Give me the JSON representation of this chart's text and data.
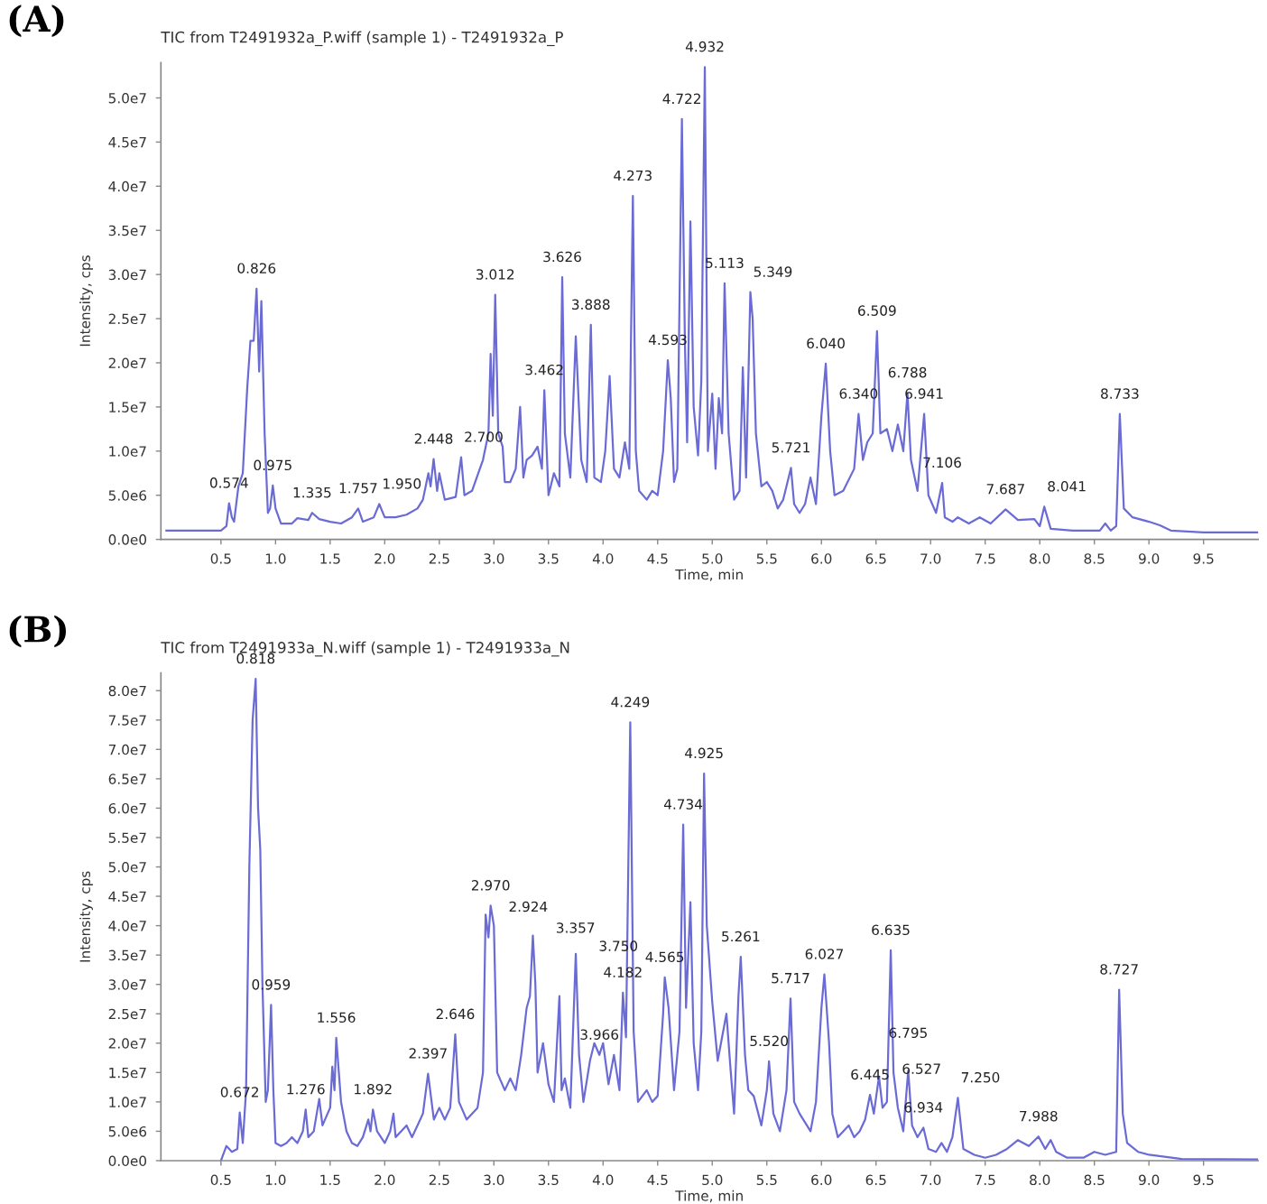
{
  "chart_data": [
    {
      "type": "line",
      "title": "TIC from T2491932a_P.wiff (sample 1) - T2491932a_P",
      "xlabel": "Time, min",
      "ylabel": "Intensity, cps",
      "xlim": [
        -0.05,
        10.0
      ],
      "xticks": [
        0.5,
        {
          "value": 1,
          "label": "1.0"
        },
        1.5,
        {
          "value": 2,
          "label": "2.0"
        },
        2.5,
        {
          "value": 3,
          "label": "3.0"
        },
        3.5,
        {
          "value": 4,
          "label": "4.0"
        },
        4.5,
        {
          "value": 5,
          "label": "5.0"
        },
        5.5,
        {
          "value": 6,
          "label": "6.0"
        },
        6.5,
        {
          "value": 7,
          "label": "7.0"
        },
        7.5,
        {
          "value": 8,
          "label": "8.0"
        },
        8.5,
        {
          "value": 9,
          "label": "9.0"
        },
        9.5
      ],
      "ylim": [
        0,
        54000000.0
      ],
      "yticks": [
        {
          "value": 0,
          "label": "0.0e0"
        },
        {
          "value": 5000000.0,
          "label": "5.0e6"
        },
        {
          "value": 10000000.0,
          "label": "1.0e7"
        },
        {
          "value": 15000000.0,
          "label": "1.5e7"
        },
        {
          "value": 20000000.0,
          "label": "2.0e7"
        },
        {
          "value": 25000000.0,
          "label": "2.5e7"
        },
        {
          "value": 30000000.0,
          "label": "3.0e7"
        },
        {
          "value": 35000000.0,
          "label": "3.5e7"
        },
        {
          "value": 40000000.0,
          "label": "4.0e7"
        },
        {
          "value": 45000000.0,
          "label": "4.5e7"
        },
        {
          "value": 50000000.0,
          "label": "5.0e7"
        }
      ],
      "grid": false,
      "marker": "none",
      "line_style": "solid",
      "series": [
        {
          "color": "#6b6bd6",
          "x": [
            0.0,
            0.5,
            0.55,
            0.574,
            0.6,
            0.62,
            0.66,
            0.7,
            0.74,
            0.77,
            0.8,
            0.826,
            0.85,
            0.87,
            0.9,
            0.93,
            0.95,
            0.975,
            1.0,
            1.05,
            1.15,
            1.2,
            1.3,
            1.335,
            1.4,
            1.5,
            1.6,
            1.7,
            1.757,
            1.8,
            1.9,
            1.95,
            2.0,
            2.1,
            2.2,
            2.3,
            2.35,
            2.4,
            2.42,
            2.448,
            2.48,
            2.5,
            2.55,
            2.65,
            2.7,
            2.73,
            2.8,
            2.9,
            2.95,
            2.97,
            2.99,
            3.012,
            3.04,
            3.08,
            3.1,
            3.15,
            3.2,
            3.24,
            3.27,
            3.3,
            3.35,
            3.4,
            3.44,
            3.462,
            3.5,
            3.55,
            3.6,
            3.626,
            3.65,
            3.7,
            3.75,
            3.8,
            3.85,
            3.888,
            3.92,
            3.98,
            4.02,
            4.06,
            4.1,
            4.15,
            4.2,
            4.24,
            4.273,
            4.3,
            4.33,
            4.4,
            4.45,
            4.5,
            4.55,
            4.593,
            4.62,
            4.65,
            4.68,
            4.722,
            4.75,
            4.77,
            4.8,
            4.83,
            4.87,
            4.9,
            4.932,
            4.96,
            5.0,
            5.03,
            5.06,
            5.09,
            5.113,
            5.15,
            5.2,
            5.25,
            5.28,
            5.31,
            5.349,
            5.37,
            5.4,
            5.45,
            5.5,
            5.55,
            5.6,
            5.65,
            5.721,
            5.75,
            5.8,
            5.85,
            5.9,
            5.95,
            6.0,
            6.04,
            6.08,
            6.12,
            6.2,
            6.3,
            6.34,
            6.38,
            6.42,
            6.47,
            6.509,
            6.54,
            6.6,
            6.65,
            6.7,
            6.75,
            6.788,
            6.82,
            6.88,
            6.941,
            6.98,
            7.05,
            7.106,
            7.13,
            7.2,
            7.25,
            7.35,
            7.45,
            7.55,
            7.687,
            7.8,
            7.95,
            8.0,
            8.041,
            8.1,
            8.3,
            8.55,
            8.6,
            8.65,
            8.7,
            8.733,
            8.77,
            8.85,
            9.0,
            9.1,
            9.2,
            9.5,
            10.0
          ],
          "values": [
            1000000.0,
            1000000.0,
            1500000.0,
            4100000.0,
            2500000.0,
            2000000.0,
            6000000.0,
            7500000.0,
            17000000.0,
            22500000.0,
            22500000.0,
            28400000.0,
            19000000.0,
            27000000.0,
            12000000.0,
            3000000.0,
            3500000.0,
            6100000.0,
            3500000.0,
            1800000.0,
            1800000.0,
            2400000.0,
            2200000.0,
            3000000.0,
            2300000.0,
            2000000.0,
            1800000.0,
            2500000.0,
            3500000.0,
            2000000.0,
            2500000.0,
            4000000.0,
            2500000.0,
            2500000.0,
            2800000.0,
            3500000.0,
            4500000.0,
            7500000.0,
            6000000.0,
            9100000.0,
            5500000.0,
            7500000.0,
            4500000.0,
            4800000.0,
            9300000.0,
            5000000.0,
            5500000.0,
            9000000.0,
            12000000.0,
            21000000.0,
            14000000.0,
            27700000.0,
            12000000.0,
            10500000.0,
            6500000.0,
            6500000.0,
            8000000.0,
            15000000.0,
            7000000.0,
            9000000.0,
            9500000.0,
            10500000.0,
            8000000.0,
            16900000.0,
            5000000.0,
            7500000.0,
            6000000.0,
            29700000.0,
            12000000.0,
            7000000.0,
            23000000.0,
            9000000.0,
            6500000.0,
            24300000.0,
            7000000.0,
            6500000.0,
            10000000.0,
            18500000.0,
            8000000.0,
            7000000.0,
            11000000.0,
            8000000.0,
            38900000.0,
            10000000.0,
            5500000.0,
            4500000.0,
            5500000.0,
            5000000.0,
            10000000.0,
            20300000.0,
            16000000.0,
            6500000.0,
            8000000.0,
            47600000.0,
            22000000.0,
            11000000.0,
            36000000.0,
            15000000.0,
            9500000.0,
            18000000.0,
            53500000.0,
            10000000.0,
            16500000.0,
            8000000.0,
            16000000.0,
            12000000.0,
            29000000.0,
            12000000.0,
            4500000.0,
            5500000.0,
            19500000.0,
            7000000.0,
            28000000.0,
            25000000.0,
            12000000.0,
            6000000.0,
            6500000.0,
            5500000.0,
            3500000.0,
            4500000.0,
            8100000.0,
            4000000.0,
            3000000.0,
            4000000.0,
            7000000.0,
            4000000.0,
            14000000.0,
            19900000.0,
            10000000.0,
            5000000.0,
            5500000.0,
            8000000.0,
            14200000.0,
            9000000.0,
            11000000.0,
            12000000.0,
            23600000.0,
            12000000.0,
            12500000.0,
            10000000.0,
            13000000.0,
            10000000.0,
            16600000.0,
            9000000.0,
            5500000.0,
            14200000.0,
            5000000.0,
            3000000.0,
            6400000.0,
            2500000.0,
            2000000.0,
            2500000.0,
            1800000.0,
            2500000.0,
            1800000.0,
            3400000.0,
            2200000.0,
            2300000.0,
            1500000.0,
            3700000.0,
            1200000.0,
            1000000.0,
            1000000.0,
            1800000.0,
            1000000.0,
            1500000.0,
            14200000.0,
            3500000.0,
            2500000.0,
            2000000.0,
            1600000.0,
            1000000.0,
            800000.0,
            800000.0
          ]
        }
      ],
      "annotations": [
        "(A)",
        {
          "text": "0.574",
          "x": 0.574,
          "y": 4100000.0
        },
        {
          "text": "0.826",
          "x": 0.826,
          "y": 28400000.0
        },
        {
          "text": "0.975",
          "x": 0.975,
          "y": 6100000.0
        },
        {
          "text": "1.335",
          "x": 1.335,
          "y": 3000000.0
        },
        {
          "text": "1.757",
          "x": 1.757,
          "y": 3500000.0
        },
        {
          "text": "1.950",
          "x": 1.95,
          "y": 4000000.0
        },
        {
          "text": "2.448",
          "x": 2.448,
          "y": 9100000.0
        },
        {
          "text": "2.700",
          "x": 2.7,
          "y": 9300000.0
        },
        {
          "text": "3.012",
          "x": 3.012,
          "y": 27700000.0
        },
        {
          "text": "3.462",
          "x": 3.462,
          "y": 16900000.0
        },
        {
          "text": "3.626",
          "x": 3.626,
          "y": 29700000.0
        },
        {
          "text": "3.888",
          "x": 3.888,
          "y": 24300000.0
        },
        {
          "text": "4.273",
          "x": 4.273,
          "y": 38900000.0
        },
        {
          "text": "4.593",
          "x": 4.593,
          "y": 20300000.0
        },
        {
          "text": "4.722",
          "x": 4.722,
          "y": 47600000.0
        },
        {
          "text": "4.932",
          "x": 4.932,
          "y": 53500000.0
        },
        {
          "text": "5.113",
          "x": 5.113,
          "y": 29000000.0
        },
        {
          "text": "5.349",
          "x": 5.349,
          "y": 28000000.0
        },
        {
          "text": "5.721",
          "x": 5.721,
          "y": 8100000.0
        },
        {
          "text": "6.040",
          "x": 6.04,
          "y": 19900000.0
        },
        {
          "text": "6.340",
          "x": 6.34,
          "y": 14200000.0
        },
        {
          "text": "6.509",
          "x": 6.509,
          "y": 23600000.0
        },
        {
          "text": "6.788",
          "x": 6.788,
          "y": 16600000.0
        },
        {
          "text": "6.941",
          "x": 6.941,
          "y": 14200000.0
        },
        {
          "text": "7.106",
          "x": 7.106,
          "y": 6400000.0
        },
        {
          "text": "7.687",
          "x": 7.687,
          "y": 3400000.0
        },
        {
          "text": "8.041",
          "x": 8.041,
          "y": 3700000.0
        },
        {
          "text": "8.733",
          "x": 8.733,
          "y": 14200000.0
        }
      ]
    },
    {
      "type": "line",
      "title": "TIC from T2491933a_N.wiff (sample 1) - T2491933a_N",
      "xlabel": "Time, min",
      "ylabel": "Intensity, cps",
      "xlim": [
        -0.05,
        10.0
      ],
      "xticks": [
        0.5,
        {
          "value": 1,
          "label": "1.0"
        },
        1.5,
        {
          "value": 2,
          "label": "2.0"
        },
        2.5,
        {
          "value": 3,
          "label": "3.0"
        },
        3.5,
        {
          "value": 4,
          "label": "4.0"
        },
        4.5,
        {
          "value": 5,
          "label": "5.0"
        },
        5.5,
        {
          "value": 6,
          "label": "6.0"
        },
        6.5,
        {
          "value": 7,
          "label": "7.0"
        },
        7.5,
        {
          "value": 8,
          "label": "8.0"
        },
        8.5,
        {
          "value": 9,
          "label": "9.0"
        },
        9.5
      ],
      "ylim": [
        0,
        83000000.0
      ],
      "yticks": [
        {
          "value": 0,
          "label": "0.0e0"
        },
        {
          "value": 5000000.0,
          "label": "5.0e6"
        },
        {
          "value": 10000000.0,
          "label": "1.0e7"
        },
        {
          "value": 15000000.0,
          "label": "1.5e7"
        },
        {
          "value": 20000000.0,
          "label": "2.0e7"
        },
        {
          "value": 25000000.0,
          "label": "2.5e7"
        },
        {
          "value": 30000000.0,
          "label": "3.0e7"
        },
        {
          "value": 35000000.0,
          "label": "3.5e7"
        },
        {
          "value": 40000000.0,
          "label": "4.0e7"
        },
        {
          "value": 45000000.0,
          "label": "4.5e7"
        },
        {
          "value": 50000000.0,
          "label": "5.0e7"
        },
        {
          "value": 55000000.0,
          "label": "5.5e7"
        },
        {
          "value": 60000000.0,
          "label": "6.0e7"
        },
        {
          "value": 65000000.0,
          "label": "6.5e7"
        },
        {
          "value": 70000000.0,
          "label": "7.0e7"
        },
        {
          "value": 75000000.0,
          "label": "7.5e7"
        },
        {
          "value": 80000000.0,
          "label": "8.0e7"
        }
      ],
      "grid": false,
      "marker": "none",
      "line_style": "solid",
      "series": [
        {
          "color": "#6b6bd6",
          "x": [
            0.5,
            0.55,
            0.6,
            0.65,
            0.672,
            0.7,
            0.73,
            0.76,
            0.79,
            0.818,
            0.84,
            0.86,
            0.88,
            0.91,
            0.93,
            0.959,
            0.98,
            1.0,
            1.05,
            1.1,
            1.15,
            1.2,
            1.25,
            1.276,
            1.3,
            1.35,
            1.4,
            1.43,
            1.5,
            1.52,
            1.54,
            1.556,
            1.6,
            1.65,
            1.7,
            1.75,
            1.8,
            1.85,
            1.87,
            1.892,
            1.93,
            2.0,
            2.05,
            2.08,
            2.1,
            2.15,
            2.2,
            2.25,
            2.3,
            2.35,
            2.397,
            2.45,
            2.5,
            2.55,
            2.6,
            2.646,
            2.68,
            2.75,
            2.85,
            2.9,
            2.924,
            2.95,
            2.97,
            3.0,
            3.03,
            3.1,
            3.15,
            3.2,
            3.25,
            3.3,
            3.33,
            3.357,
            3.38,
            3.4,
            3.45,
            3.5,
            3.55,
            3.6,
            3.62,
            3.65,
            3.7,
            3.75,
            3.78,
            3.82,
            3.88,
            3.92,
            3.966,
            4.0,
            4.05,
            4.1,
            4.15,
            4.182,
            4.21,
            4.249,
            4.28,
            4.32,
            4.4,
            4.45,
            4.5,
            4.55,
            4.565,
            4.6,
            4.65,
            4.7,
            4.734,
            4.76,
            4.8,
            4.83,
            4.87,
            4.9,
            4.925,
            4.95,
            5.0,
            5.05,
            5.1,
            5.13,
            5.17,
            5.2,
            5.24,
            5.261,
            5.3,
            5.33,
            5.38,
            5.45,
            5.5,
            5.52,
            5.56,
            5.62,
            5.68,
            5.717,
            5.75,
            5.8,
            5.9,
            5.95,
            6.0,
            6.027,
            6.07,
            6.1,
            6.15,
            6.2,
            6.25,
            6.3,
            6.35,
            6.4,
            6.445,
            6.48,
            6.527,
            6.56,
            6.6,
            6.635,
            6.66,
            6.7,
            6.75,
            6.795,
            6.83,
            6.88,
            6.934,
            6.98,
            7.05,
            7.1,
            7.15,
            7.2,
            7.25,
            7.3,
            7.4,
            7.5,
            7.6,
            7.7,
            7.8,
            7.9,
            7.988,
            8.05,
            8.1,
            8.15,
            8.25,
            8.4,
            8.5,
            8.6,
            8.7,
            8.727,
            8.76,
            8.8,
            8.9,
            9.0,
            9.3,
            10.0
          ],
          "values": [
            0,
            2500000.0,
            1500000.0,
            2000000.0,
            8200000.0,
            3000000.0,
            12000000.0,
            50000000.0,
            75000000.0,
            82000000.0,
            60000000.0,
            53000000.0,
            30000000.0,
            10000000.0,
            12000000.0,
            26500000.0,
            12000000.0,
            3000000.0,
            2500000.0,
            3000000.0,
            4000000.0,
            3000000.0,
            5000000.0,
            8700000.0,
            4000000.0,
            5000000.0,
            10500000.0,
            6000000.0,
            9000000.0,
            16000000.0,
            12000000.0,
            20900000.0,
            10000000.0,
            5000000.0,
            3000000.0,
            2500000.0,
            4000000.0,
            7000000.0,
            5000000.0,
            8700000.0,
            5000000.0,
            3000000.0,
            5000000.0,
            8000000.0,
            4000000.0,
            5000000.0,
            6000000.0,
            4000000.0,
            6000000.0,
            8000000.0,
            14800000.0,
            7000000.0,
            9000000.0,
            7000000.0,
            9000000.0,
            21500000.0,
            10000000.0,
            7000000.0,
            9000000.0,
            15000000.0,
            41900000.0,
            38000000.0,
            43400000.0,
            40000000.0,
            15000000.0,
            12000000.0,
            14000000.0,
            12000000.0,
            18000000.0,
            26000000.0,
            28000000.0,
            38300000.0,
            30000000.0,
            15000000.0,
            20000000.0,
            13000000.0,
            10000000.0,
            28000000.0,
            12000000.0,
            14000000.0,
            9000000.0,
            35200000.0,
            18000000.0,
            10000000.0,
            17000000.0,
            20000000.0,
            18000000.0,
            20000000.0,
            13000000.0,
            18000000.0,
            12000000.0,
            28600000.0,
            21000000.0,
            74600000.0,
            22000000.0,
            10000000.0,
            12000000.0,
            10000000.0,
            11000000.0,
            25000000.0,
            31200000.0,
            26000000.0,
            12000000.0,
            22000000.0,
            57200000.0,
            26000000.0,
            44000000.0,
            20000000.0,
            12000000.0,
            22000000.0,
            65900000.0,
            40000000.0,
            27000000.0,
            17000000.0,
            22000000.0,
            25000000.0,
            15000000.0,
            8000000.0,
            28000000.0,
            34700000.0,
            18000000.0,
            12000000.0,
            11000000.0,
            6000000.0,
            12000000.0,
            16900000.0,
            8000000.0,
            5000000.0,
            12000000.0,
            27600000.0,
            10000000.0,
            8000000.0,
            5000000.0,
            10000000.0,
            26000000.0,
            31700000.0,
            20000000.0,
            8000000.0,
            4000000.0,
            5000000.0,
            6000000.0,
            4000000.0,
            5000000.0,
            7000000.0,
            11200000.0,
            8000000.0,
            14300000.0,
            9000000.0,
            10000000.0,
            35800000.0,
            15000000.0,
            9000000.0,
            5000000.0,
            15300000.0,
            6000000.0,
            4000000.0,
            5600000.0,
            2000000.0,
            1500000.0,
            3000000.0,
            1500000.0,
            4000000.0,
            10700000.0,
            2000000.0,
            1000000.0,
            500000.0,
            1000000.0,
            2000000.0,
            3500000.0,
            2500000.0,
            4100000.0,
            2000000.0,
            3500000.0,
            1500000.0,
            500000.0,
            500000.0,
            1500000.0,
            1000000.0,
            1500000.0,
            29100000.0,
            8000000.0,
            3000000.0,
            1500000.0,
            1000000.0,
            300000.0,
            200000.0
          ]
        }
      ],
      "annotations": [
        "(B)",
        {
          "text": "0.672",
          "x": 0.672,
          "y": 8200000.0
        },
        {
          "text": "0.818",
          "x": 0.818,
          "y": 82000000.0
        },
        {
          "text": "0.959",
          "x": 0.959,
          "y": 26500000.0
        },
        {
          "text": "1.276",
          "x": 1.276,
          "y": 8700000.0
        },
        {
          "text": "1.556",
          "x": 1.556,
          "y": 20900000.0
        },
        {
          "text": "1.892",
          "x": 1.892,
          "y": 8700000.0
        },
        {
          "text": "2.397",
          "x": 2.397,
          "y": 14800000.0
        },
        {
          "text": "2.646",
          "x": 2.646,
          "y": 21500000.0
        },
        {
          "text": "2.970",
          "x": 2.97,
          "y": 43400000.0
        },
        {
          "text": "2.924",
          "x": 2.924,
          "y": 41900000.0
        },
        {
          "text": "3.357",
          "x": 3.357,
          "y": 38300000.0
        },
        {
          "text": "3.750",
          "x": 3.75,
          "y": 35200000.0
        },
        {
          "text": "3.966",
          "x": 3.966,
          "y": 18000000.0
        },
        {
          "text": "4.182",
          "x": 4.182,
          "y": 28600000.0
        },
        {
          "text": "4.249",
          "x": 4.249,
          "y": 74600000.0
        },
        {
          "text": "4.565",
          "x": 4.565,
          "y": 31200000.0
        },
        {
          "text": "4.734",
          "x": 4.734,
          "y": 57200000.0
        },
        {
          "text": "4.925",
          "x": 4.925,
          "y": 65900000.0
        },
        {
          "text": "5.261",
          "x": 5.261,
          "y": 34700000.0
        },
        {
          "text": "5.520",
          "x": 5.52,
          "y": 16900000.0
        },
        {
          "text": "5.717",
          "x": 5.717,
          "y": 27600000.0
        },
        {
          "text": "6.027",
          "x": 6.027,
          "y": 31700000.0
        },
        {
          "text": "6.445",
          "x": 6.445,
          "y": 11200000.0
        },
        {
          "text": "6.527",
          "x": 6.527,
          "y": 14300000.0
        },
        {
          "text": "6.635",
          "x": 6.635,
          "y": 35800000.0
        },
        {
          "text": "6.795",
          "x": 6.795,
          "y": 15300000.0
        },
        {
          "text": "6.934",
          "x": 6.934,
          "y": 5600000.0
        },
        {
          "text": "7.250",
          "x": 7.25,
          "y": 10700000.0
        },
        {
          "text": "7.988",
          "x": 7.988,
          "y": 4100000.0
        },
        {
          "text": "8.727",
          "x": 8.727,
          "y": 29100000.0
        }
      ]
    }
  ]
}
